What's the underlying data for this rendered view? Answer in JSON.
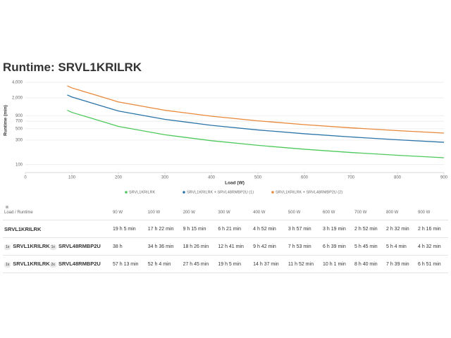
{
  "header": {
    "title": "Runtime: SRVL1KRILRK"
  },
  "chart_data": {
    "type": "line",
    "x": [
      90,
      100,
      200,
      300,
      400,
      500,
      600,
      700,
      800,
      900
    ],
    "series": [
      {
        "name": "SRVL1KRILRK",
        "color": "#4dc95b",
        "values": [
          1145,
          1042,
          555,
          381,
          292,
          237,
          199,
          172,
          152,
          136
        ]
      },
      {
        "name": "SRVL1KRILRK + SRVL48RMBP2U (1)",
        "color": "#2a74a8",
        "values": [
          2280,
          2076,
          1106,
          761,
          582,
          473,
          399,
          345,
          304,
          272
        ]
      },
      {
        "name": "SRVL1KRILRK + SRVL48RMBP2U (2)",
        "color": "#e8883a",
        "values": [
          3433,
          3124,
          1665,
          1145,
          877,
          712,
          601,
          520,
          459,
          411
        ]
      }
    ],
    "xlabel": "Load (W)",
    "ylabel": "Runtime (min)",
    "xlim": [
      0,
      900
    ],
    "xticks": [
      0,
      100,
      200,
      300,
      400,
      500,
      600,
      700,
      800,
      900
    ],
    "ylim": [
      70,
      4000
    ],
    "log_y": true,
    "yticks": [
      100,
      300,
      500,
      700,
      900,
      {
        "value": 2000,
        "label": "2,000"
      },
      {
        "value": 4000,
        "label": "4,000"
      }
    ],
    "grid": true,
    "legend": "bottom"
  },
  "table": {
    "header": [
      "Load / Runtime",
      "90 W",
      "100 W",
      "200 W",
      "300 W",
      "400 W",
      "500 W",
      "600 W",
      "700 W",
      "800 W",
      "900 W"
    ],
    "rows": [
      {
        "items": [
          {
            "name": "SRVL1KRILRK"
          }
        ],
        "cells": [
          "19 h 5 min",
          "17 h 22 min",
          "9 h 15 min",
          "6 h 21 min",
          "4 h 52 min",
          "3 h 57 min",
          "3 h 19 min",
          "2 h 52 min",
          "2 h 32 min",
          "2 h 16 min"
        ]
      },
      {
        "items": [
          {
            "qty": "1x",
            "name": "SRVL1KRILRK"
          },
          {
            "qty": "1x",
            "name": "SRVL48RMBP2U"
          }
        ],
        "cells": [
          "38 h",
          "34 h 36 min",
          "18 h 26 min",
          "12 h 41 min",
          "9 h 42 min",
          "7 h 53 min",
          "6 h 39 min",
          "5 h 45 min",
          "5 h 4 min",
          "4 h 32 min"
        ]
      },
      {
        "items": [
          {
            "qty": "1x",
            "name": "SRVL1KRILRK"
          },
          {
            "qty": "2x",
            "name": "SRVL48RMBP2U"
          }
        ],
        "cells": [
          "57 h 13 min",
          "52 h 4 min",
          "27 h 45 min",
          "19 h 5 min",
          "14 h 37 min",
          "11 h 52 min",
          "10 h 1 min",
          "8 h 40 min",
          "7 h 39 min",
          "6 h 51 min"
        ]
      }
    ]
  }
}
